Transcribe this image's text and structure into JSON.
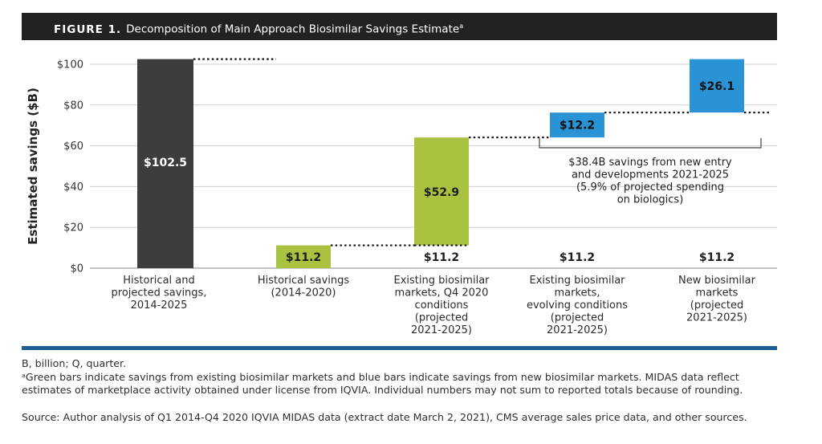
{
  "figure": {
    "label": "FIGURE 1.",
    "title": "Decomposition of Main Approach Biosimilar Savings Estimate",
    "title_marker": "a"
  },
  "chart_data": {
    "type": "waterfall",
    "ylabel": "Estimated savings ($B)",
    "ylim": [
      0,
      100
    ],
    "yticks": [
      0,
      20,
      40,
      60,
      80,
      100
    ],
    "ytick_labels": [
      "$0",
      "$20",
      "$40",
      "$60",
      "$80",
      "$100"
    ],
    "categories": [
      [
        "Historical and",
        "projected savings,",
        "2014-2025"
      ],
      [
        "Historical savings",
        "(2014-2020)"
      ],
      [
        "Existing biosimilar",
        "markets, Q4 2020",
        "conditions",
        "(projected",
        "2021-2025)"
      ],
      [
        "Existing biosimilar",
        "markets,",
        "evolving conditions",
        "(projected",
        "2021-2025)"
      ],
      [
        "New biosimilar",
        "markets",
        "(projected",
        "2021-2025)"
      ]
    ],
    "bars": [
      {
        "start": 0,
        "end": 102.5,
        "label": "$102.5",
        "color": "#3d3d3d",
        "label_color": "#ffffff"
      },
      {
        "start": 0,
        "end": 11.2,
        "label": "$11.2",
        "color": "#a9c23f",
        "label_color": "#1e1e1e"
      },
      {
        "start": 11.2,
        "end": 64.1,
        "label": "$52.9",
        "color": "#a9c23f",
        "label_color": "#1e1e1e"
      },
      {
        "start": 64.1,
        "end": 76.3,
        "label": "$12.2",
        "color": "#2a93d5",
        "label_color": "#111111"
      },
      {
        "start": 76.3,
        "end": 102.5,
        "label": "$26.1",
        "color": "#2a93d5",
        "label_color": "#111111"
      }
    ],
    "base_labels": [
      "$11.2",
      "$11.2",
      "$11.2"
    ],
    "annotation": [
      "$38.4B savings from new entry",
      "and developments 2021-2025",
      "(5.9% of projected spending",
      "on biologics)"
    ],
    "legend": "none"
  },
  "notes": {
    "abbrev": "B, billion; Q, quarter.",
    "desc": "ᵃGreen bars indicate savings from existing biosimilar markets and blue bars indicate savings from new biosimilar markets. MIDAS data reflect estimates of marketplace activity obtained under license from IQVIA. Individual numbers may not sum to reported totals because of rounding.",
    "source": "Source: Author analysis of Q1 2014-Q4 2020 IQVIA MIDAS data (extract date March 2, 2021), CMS average sales price data, and other sources."
  }
}
